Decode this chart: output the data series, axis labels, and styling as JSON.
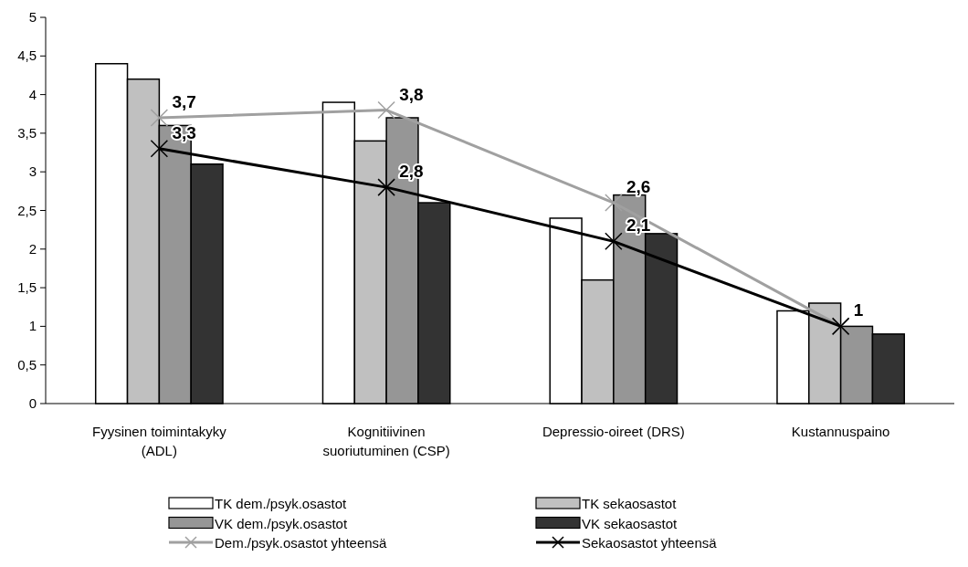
{
  "chart_data": {
    "type": "bar",
    "categories": [
      "Fyysinen toimintakyky (ADL)",
      "Kognitiivinen suoriutuminen (CSP)",
      "Depressio-oireet (DRS)",
      "Kustannuspaino"
    ],
    "series": [
      {
        "name": "TK dem./psyk.osastot",
        "color": "#ffffff",
        "values": [
          4.4,
          3.9,
          2.4,
          1.2
        ]
      },
      {
        "name": "TK sekaosastot",
        "color": "#c0c0c0",
        "values": [
          4.2,
          3.4,
          1.6,
          1.3
        ]
      },
      {
        "name": "VK dem./psyk.osastot",
        "color": "#969696",
        "values": [
          3.6,
          3.7,
          2.7,
          1.0
        ]
      },
      {
        "name": "VK sekaosastot",
        "color": "#333333",
        "values": [
          3.1,
          2.6,
          2.2,
          0.9
        ]
      },
      {
        "name": "Dem./psyk.osastot yhteensä",
        "type": "line",
        "color": "#a0a0a0",
        "marker": "cross",
        "values": [
          3.7,
          3.8,
          2.6,
          1
        ],
        "value_labels": [
          "3,7",
          "3,8",
          "2,6",
          "1"
        ]
      },
      {
        "name": "Sekaosastot yhteensä",
        "type": "line",
        "color": "#000000",
        "marker": "cross",
        "values": [
          3.3,
          2.8,
          2.1,
          1
        ],
        "value_labels": [
          "3,3",
          "2,8",
          "2,1",
          "1"
        ]
      }
    ],
    "ylim": [
      0,
      5
    ],
    "yticks": [
      0,
      {
        "value": 0.5,
        "label": "0,5"
      },
      1,
      {
        "value": 1.5,
        "label": "1,5"
      },
      2,
      {
        "value": 2.5,
        "label": "2,5"
      },
      3,
      {
        "value": 3.5,
        "label": "3,5"
      },
      4,
      {
        "value": 4.5,
        "label": "4,5"
      },
      5
    ],
    "grid": false,
    "legend": "bottom"
  }
}
